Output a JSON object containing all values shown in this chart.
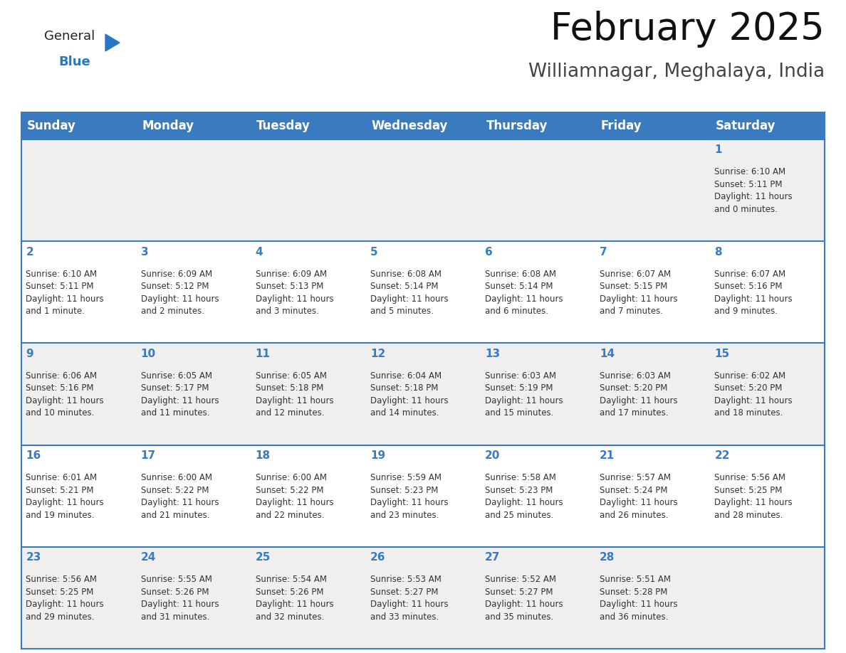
{
  "title": "February 2025",
  "subtitle": "Williamnagar, Meghalaya, India",
  "header_bg": "#3a7bbf",
  "header_text_color": "#ffffff",
  "day_names": [
    "Sunday",
    "Monday",
    "Tuesday",
    "Wednesday",
    "Thursday",
    "Friday",
    "Saturday"
  ],
  "row_odd_bg": "#efefef",
  "row_even_bg": "#ffffff",
  "cell_border_color": "#3a7bbf",
  "day_num_color": "#3a7bbf",
  "info_text_color": "#333333",
  "calendar_data": [
    [
      {
        "day": null
      },
      {
        "day": null
      },
      {
        "day": null
      },
      {
        "day": null
      },
      {
        "day": null
      },
      {
        "day": null
      },
      {
        "day": 1,
        "sunrise": "6:10 AM",
        "sunset": "5:11 PM",
        "daylight": "11 hours and 0 minutes."
      }
    ],
    [
      {
        "day": 2,
        "sunrise": "6:10 AM",
        "sunset": "5:11 PM",
        "daylight": "11 hours and 1 minute."
      },
      {
        "day": 3,
        "sunrise": "6:09 AM",
        "sunset": "5:12 PM",
        "daylight": "11 hours and 2 minutes."
      },
      {
        "day": 4,
        "sunrise": "6:09 AM",
        "sunset": "5:13 PM",
        "daylight": "11 hours and 3 minutes."
      },
      {
        "day": 5,
        "sunrise": "6:08 AM",
        "sunset": "5:14 PM",
        "daylight": "11 hours and 5 minutes."
      },
      {
        "day": 6,
        "sunrise": "6:08 AM",
        "sunset": "5:14 PM",
        "daylight": "11 hours and 6 minutes."
      },
      {
        "day": 7,
        "sunrise": "6:07 AM",
        "sunset": "5:15 PM",
        "daylight": "11 hours and 7 minutes."
      },
      {
        "day": 8,
        "sunrise": "6:07 AM",
        "sunset": "5:16 PM",
        "daylight": "11 hours and 9 minutes."
      }
    ],
    [
      {
        "day": 9,
        "sunrise": "6:06 AM",
        "sunset": "5:16 PM",
        "daylight": "11 hours and 10 minutes."
      },
      {
        "day": 10,
        "sunrise": "6:05 AM",
        "sunset": "5:17 PM",
        "daylight": "11 hours and 11 minutes."
      },
      {
        "day": 11,
        "sunrise": "6:05 AM",
        "sunset": "5:18 PM",
        "daylight": "11 hours and 12 minutes."
      },
      {
        "day": 12,
        "sunrise": "6:04 AM",
        "sunset": "5:18 PM",
        "daylight": "11 hours and 14 minutes."
      },
      {
        "day": 13,
        "sunrise": "6:03 AM",
        "sunset": "5:19 PM",
        "daylight": "11 hours and 15 minutes."
      },
      {
        "day": 14,
        "sunrise": "6:03 AM",
        "sunset": "5:20 PM",
        "daylight": "11 hours and 17 minutes."
      },
      {
        "day": 15,
        "sunrise": "6:02 AM",
        "sunset": "5:20 PM",
        "daylight": "11 hours and 18 minutes."
      }
    ],
    [
      {
        "day": 16,
        "sunrise": "6:01 AM",
        "sunset": "5:21 PM",
        "daylight": "11 hours and 19 minutes."
      },
      {
        "day": 17,
        "sunrise": "6:00 AM",
        "sunset": "5:22 PM",
        "daylight": "11 hours and 21 minutes."
      },
      {
        "day": 18,
        "sunrise": "6:00 AM",
        "sunset": "5:22 PM",
        "daylight": "11 hours and 22 minutes."
      },
      {
        "day": 19,
        "sunrise": "5:59 AM",
        "sunset": "5:23 PM",
        "daylight": "11 hours and 23 minutes."
      },
      {
        "day": 20,
        "sunrise": "5:58 AM",
        "sunset": "5:23 PM",
        "daylight": "11 hours and 25 minutes."
      },
      {
        "day": 21,
        "sunrise": "5:57 AM",
        "sunset": "5:24 PM",
        "daylight": "11 hours and 26 minutes."
      },
      {
        "day": 22,
        "sunrise": "5:56 AM",
        "sunset": "5:25 PM",
        "daylight": "11 hours and 28 minutes."
      }
    ],
    [
      {
        "day": 23,
        "sunrise": "5:56 AM",
        "sunset": "5:25 PM",
        "daylight": "11 hours and 29 minutes."
      },
      {
        "day": 24,
        "sunrise": "5:55 AM",
        "sunset": "5:26 PM",
        "daylight": "11 hours and 31 minutes."
      },
      {
        "day": 25,
        "sunrise": "5:54 AM",
        "sunset": "5:26 PM",
        "daylight": "11 hours and 32 minutes."
      },
      {
        "day": 26,
        "sunrise": "5:53 AM",
        "sunset": "5:27 PM",
        "daylight": "11 hours and 33 minutes."
      },
      {
        "day": 27,
        "sunrise": "5:52 AM",
        "sunset": "5:27 PM",
        "daylight": "11 hours and 35 minutes."
      },
      {
        "day": 28,
        "sunrise": "5:51 AM",
        "sunset": "5:28 PM",
        "daylight": "11 hours and 36 minutes."
      },
      {
        "day": null
      }
    ]
  ],
  "logo_general_color": "#222222",
  "logo_blue_color": "#2878c3",
  "title_fontsize": 38,
  "subtitle_fontsize": 19,
  "header_fontsize": 12,
  "day_num_fontsize": 11,
  "info_fontsize": 8.5
}
